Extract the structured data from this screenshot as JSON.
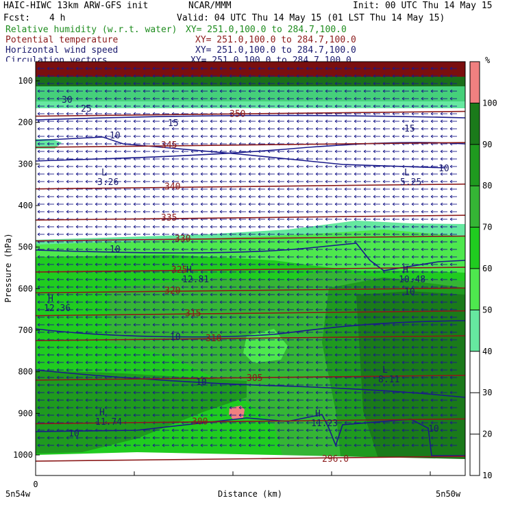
{
  "header": {
    "model_title": "HAIC-HIWC 13km ARW-GFS init",
    "org": "NCAR/MMM",
    "init": "Init: 00 UTC Thu 14 May 15",
    "fcst_label": "Fcst:",
    "fcst_value": "4 h",
    "valid": "Valid: 04 UTC Thu 14 May 15 (01 LST Thu 14 May 15)"
  },
  "fields": [
    {
      "name": "Relative humidity (w.r.t. water)",
      "xy": "XY= 251.0,100.0 to 284.7,100.0",
      "color": "#1e8c1e"
    },
    {
      "name": "Potential temperature",
      "xy": "XY= 251.0,100.0 to 284.7,100.0",
      "color": "#8b1a1a"
    },
    {
      "name": "Horizontal wind speed",
      "xy": "XY= 251.0,100.0 to 284.7,100.0",
      "color": "#1a1a6e"
    },
    {
      "name": "Circulation vectors",
      "xy": "XY= 251.0,100.0 to 284.7,100.0",
      "color": "#1a1a6e"
    }
  ],
  "colors": {
    "rh_50": "#66e8a0",
    "rh_60": "#4ee84e",
    "rh_70": "#20cc20",
    "rh_80": "#35b535",
    "rh_90": "#1f9a1f",
    "rh_100": "#1a7a1a",
    "rh_over": "#f08080",
    "theta": "#8b1a1a",
    "wind": "#1a1a8a",
    "vector": "#1a1a8a"
  },
  "colorbar": {
    "unit": "%",
    "levels": [
      10,
      20,
      30,
      40,
      50,
      60,
      70,
      80,
      90,
      100
    ]
  },
  "chart_data": {
    "type": "contour-cross-section",
    "ylabel": "Pressure (hPa)",
    "xlabel": "Distance (km)",
    "x_start_label": "0",
    "x_left_label": "5n54w",
    "x_right_label": "5n50w",
    "y_ticks": [
      100,
      200,
      300,
      400,
      500,
      600,
      700,
      800,
      900,
      1000
    ],
    "ylim": [
      1050,
      70
    ],
    "theta_contours": [
      {
        "label": "300",
        "p": 920
      },
      {
        "label": "305",
        "p": 815
      },
      {
        "label": "310",
        "p": 720
      },
      {
        "label": "315",
        "p": 660
      },
      {
        "label": "320",
        "p": 605
      },
      {
        "label": "325",
        "p": 555
      },
      {
        "label": "330",
        "p": 480
      },
      {
        "label": "335",
        "p": 430
      },
      {
        "label": "340",
        "p": 355
      },
      {
        "label": "345",
        "p": 255
      },
      {
        "label": "350",
        "p": 180
      },
      {
        "label": "296.0",
        "p": 1010
      }
    ],
    "wind_labels": [
      {
        "label": "10",
        "p": 505
      },
      {
        "label": "10",
        "p": 680
      },
      {
        "label": "10",
        "p": 860
      },
      {
        "label": "10",
        "p": 980
      },
      {
        "label": "10",
        "p": 620
      },
      {
        "label": "10",
        "p": 925
      },
      {
        "label": "10",
        "p": 245
      },
      {
        "label": "10",
        "p": 285
      },
      {
        "label": "15",
        "p": 175
      },
      {
        "label": "15",
        "p": 195
      },
      {
        "label": "25",
        "p": 160
      },
      {
        "label": "30",
        "p": 130
      }
    ],
    "extrema": [
      {
        "kind": "L",
        "value": "3.26",
        "p": 320
      },
      {
        "kind": "L",
        "value": "5.25",
        "p": 320
      },
      {
        "kind": "H",
        "value": "12.81",
        "p": 585
      },
      {
        "kind": "H",
        "value": "10.48",
        "p": 580
      },
      {
        "kind": "H",
        "value": "12.36",
        "p": 650
      },
      {
        "kind": "L",
        "value": "8.11",
        "p": 820
      },
      {
        "kind": "H",
        "value": "11.74",
        "p": 930
      },
      {
        "kind": "H",
        "value": "11.23",
        "p": 935
      }
    ]
  }
}
